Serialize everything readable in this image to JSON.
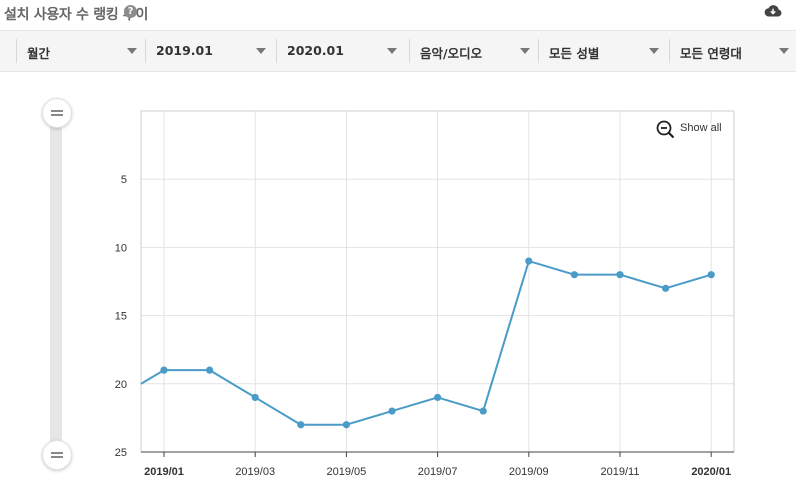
{
  "header": {
    "title": "설치 사용자 수 랭킹 추이",
    "help_glyph": "?"
  },
  "filters": [
    {
      "label": "월간"
    },
    {
      "label": "2019.01"
    },
    {
      "label": "2020.01"
    },
    {
      "label": "음악/오디오"
    },
    {
      "label": "모든 성별"
    },
    {
      "label": "모든 연령대"
    }
  ],
  "zoom": {
    "show_all_label": "Show all"
  },
  "colors": {
    "line": "#4a9bc7",
    "grid": "#e3e3e3",
    "axis": "#444444"
  },
  "icons": [
    "help-icon",
    "cloud-download-icon",
    "chevron-down-icon",
    "zoom-out-icon",
    "drag-handle-icon"
  ],
  "chart_data": {
    "type": "line",
    "title": "",
    "xlabel": "",
    "ylabel": "",
    "y_inverted": true,
    "ylim": [
      25,
      0
    ],
    "y_ticks": [
      5,
      10,
      15,
      20,
      25
    ],
    "x_tick_labels": [
      "2019/01",
      "2019/03",
      "2019/05",
      "2019/07",
      "2019/09",
      "2019/11",
      "2020/01"
    ],
    "grid": true,
    "series": [
      {
        "x": [
          "2018/12",
          "2019/01",
          "2019/02",
          "2019/03",
          "2019/04",
          "2019/05",
          "2019/06",
          "2019/07",
          "2019/08",
          "2019/09",
          "2019/10",
          "2019/11",
          "2019/12",
          "2020/01"
        ],
        "values": [
          20,
          19,
          19,
          21,
          23,
          23,
          22,
          21,
          22,
          11,
          12,
          12,
          13,
          12
        ]
      }
    ]
  }
}
